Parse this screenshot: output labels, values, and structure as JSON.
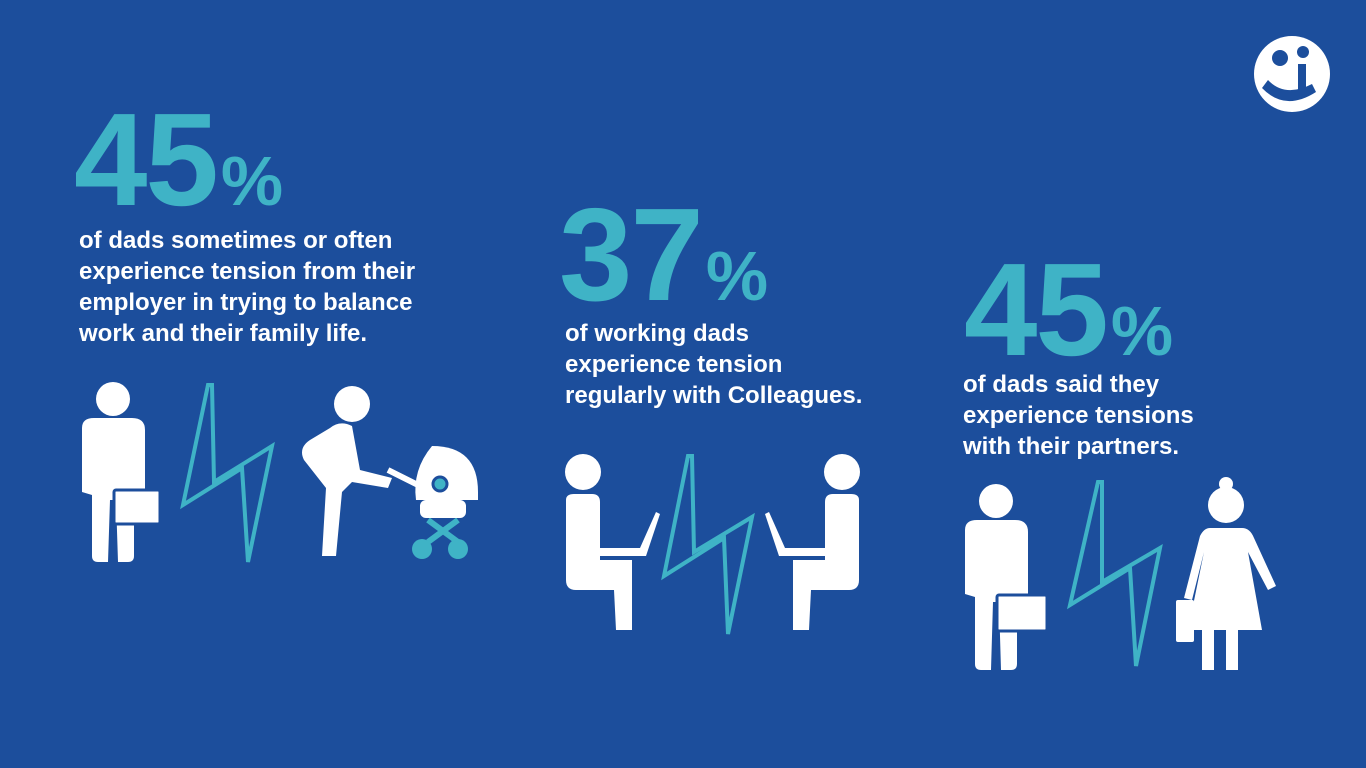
{
  "stats": [
    {
      "figure": "45",
      "unit": "%",
      "lines": [
        "of dads sometimes or often",
        "experience tension from their",
        "employer in trying to balance",
        "work and their family life."
      ]
    },
    {
      "figure": "37",
      "unit": "%",
      "lines": [
        "of working dads",
        "experience tension",
        "regularly with Colleagues."
      ]
    },
    {
      "figure": "45",
      "unit": "%",
      "lines": [
        "of dads said they",
        "experience tensions",
        "with their partners."
      ]
    }
  ]
}
